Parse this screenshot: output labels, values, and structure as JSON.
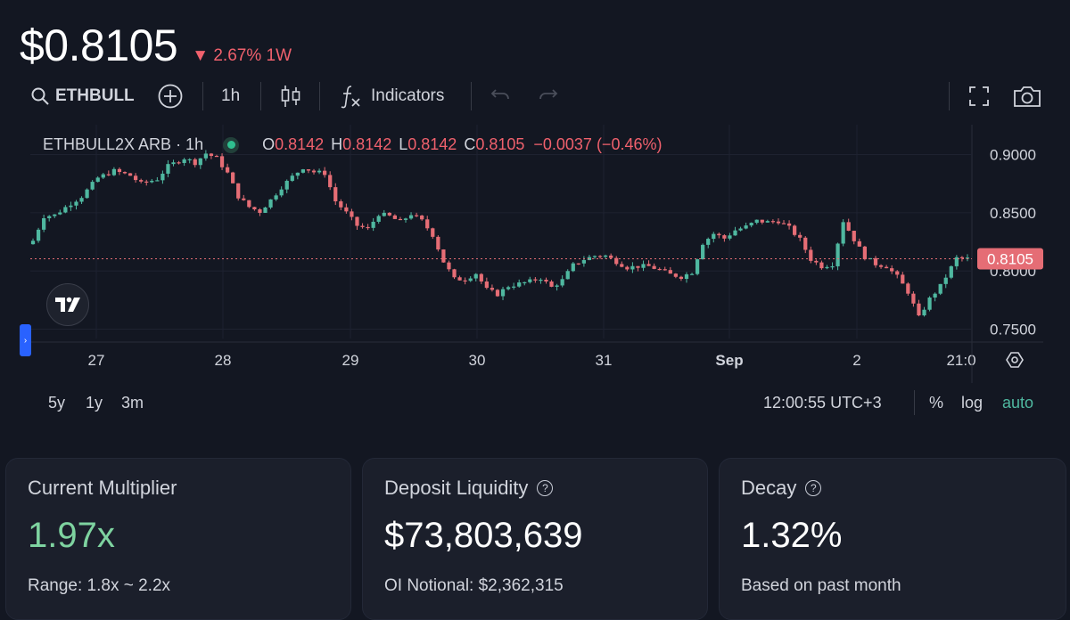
{
  "header": {
    "price": "$0.8105",
    "change_arrow": "▼",
    "change_text": "2.67% 1W",
    "change_color": "#f0616d"
  },
  "toolbar": {
    "symbol": "ETHBULL",
    "interval": "1h",
    "indicators_label": "Indicators",
    "icons": [
      "search-icon",
      "add-compare-icon",
      "candles-icon",
      "fx-icon",
      "undo-icon",
      "redo-icon",
      "fullscreen-icon",
      "camera-icon"
    ]
  },
  "legend": {
    "title": "ETHBULL2X ARB · 1h",
    "o_label": "O",
    "o_value": "0.8142",
    "h_label": "H",
    "h_value": "0.8142",
    "l_label": "L",
    "l_value": "0.8142",
    "c_label": "C",
    "c_value": "0.8105",
    "change": "−0.0037 (−0.46%)"
  },
  "chart_data": {
    "type": "candlestick",
    "last_price_label": "0.8105",
    "last_price": 0.8105,
    "ylim": [
      0.742,
      0.918
    ],
    "y_ticks": [
      "0.9000",
      "0.8500",
      "0.8000",
      "0.7500"
    ],
    "y_tick_values": [
      0.9,
      0.85,
      0.8,
      0.75
    ],
    "x_ticks": [
      "27",
      "28",
      "29",
      "30",
      "31",
      "Sep",
      "2",
      "21:0"
    ],
    "colors": {
      "up": "#4fb8a0",
      "down": "#e56d75",
      "price_line": "#e56d75",
      "grid": "#1e2230"
    },
    "x_domain_hours": [
      0,
      174
    ],
    "ohlc_path": [
      [
        0,
        0.823
      ],
      [
        1,
        0.826
      ],
      [
        3,
        0.847
      ],
      [
        5,
        0.848
      ],
      [
        8,
        0.858
      ],
      [
        10,
        0.864
      ],
      [
        13,
        0.88
      ],
      [
        16,
        0.886
      ],
      [
        19,
        0.882
      ],
      [
        21,
        0.875
      ],
      [
        24,
        0.879
      ],
      [
        26,
        0.89
      ],
      [
        29,
        0.897
      ],
      [
        31,
        0.893
      ],
      [
        33,
        0.901
      ],
      [
        35,
        0.897
      ],
      [
        37,
        0.884
      ],
      [
        39,
        0.864
      ],
      [
        41,
        0.855
      ],
      [
        43,
        0.851
      ],
      [
        45,
        0.861
      ],
      [
        47,
        0.872
      ],
      [
        49,
        0.881
      ],
      [
        51,
        0.889
      ],
      [
        53,
        0.885
      ],
      [
        55,
        0.884
      ],
      [
        57,
        0.86
      ],
      [
        59,
        0.85
      ],
      [
        61,
        0.839
      ],
      [
        63,
        0.836
      ],
      [
        65,
        0.849
      ],
      [
        67,
        0.847
      ],
      [
        69,
        0.842
      ],
      [
        71,
        0.849
      ],
      [
        73,
        0.843
      ],
      [
        75,
        0.831
      ],
      [
        77,
        0.808
      ],
      [
        79,
        0.793
      ],
      [
        81,
        0.793
      ],
      [
        83,
        0.798
      ],
      [
        85,
        0.784
      ],
      [
        87,
        0.78
      ],
      [
        89,
        0.787
      ],
      [
        91,
        0.789
      ],
      [
        93,
        0.791
      ],
      [
        95,
        0.794
      ],
      [
        97,
        0.786
      ],
      [
        99,
        0.792
      ],
      [
        101,
        0.805
      ],
      [
        103,
        0.81
      ],
      [
        105,
        0.813
      ],
      [
        107,
        0.813
      ],
      [
        109,
        0.808
      ],
      [
        111,
        0.803
      ],
      [
        113,
        0.804
      ],
      [
        115,
        0.804
      ],
      [
        117,
        0.801
      ],
      [
        119,
        0.797
      ],
      [
        121,
        0.795
      ],
      [
        123,
        0.799
      ],
      [
        125,
        0.824
      ],
      [
        127,
        0.832
      ],
      [
        129,
        0.828
      ],
      [
        131,
        0.835
      ],
      [
        133,
        0.838
      ],
      [
        135,
        0.843
      ],
      [
        137,
        0.842
      ],
      [
        139,
        0.843
      ],
      [
        141,
        0.837
      ],
      [
        143,
        0.827
      ],
      [
        145,
        0.81
      ],
      [
        147,
        0.804
      ],
      [
        149,
        0.806
      ],
      [
        151,
        0.843
      ],
      [
        153,
        0.827
      ],
      [
        155,
        0.812
      ],
      [
        157,
        0.806
      ],
      [
        159,
        0.804
      ],
      [
        161,
        0.795
      ],
      [
        163,
        0.782
      ],
      [
        165,
        0.76
      ],
      [
        167,
        0.776
      ],
      [
        169,
        0.787
      ],
      [
        171,
        0.803
      ],
      [
        172,
        0.811
      ],
      [
        174,
        0.8105
      ]
    ]
  },
  "range_bar": {
    "ranges": [
      "5y",
      "1y",
      "3m"
    ],
    "time": "12:00:55 UTC+3",
    "percent": "%",
    "log": "log",
    "auto": "auto",
    "auto_color": "#4fb8a0"
  },
  "cards": [
    {
      "label": "Current Multiplier",
      "value": "1.97x",
      "value_color": "#7ed3a0",
      "sub": "Range: 1.8x ~ 2.2x",
      "has_help": false
    },
    {
      "label": "Deposit Liquidity",
      "value": "$73,803,639",
      "value_color": "#ffffff",
      "sub": "OI Notional: $2,362,315",
      "has_help": true
    },
    {
      "label": "Decay",
      "value": "1.32%",
      "value_color": "#ffffff",
      "sub": "Based on past month",
      "has_help": true
    }
  ]
}
